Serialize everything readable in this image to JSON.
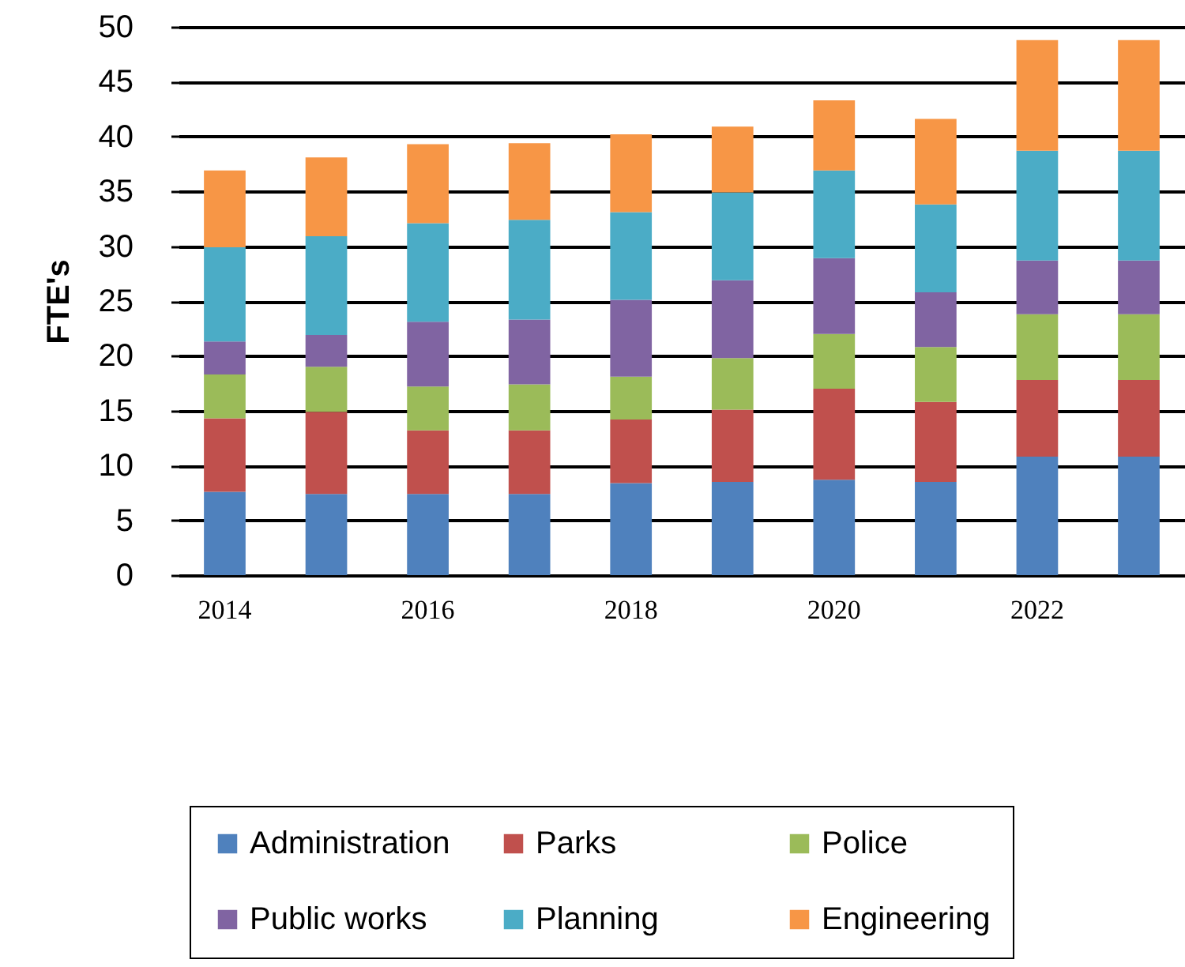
{
  "chart_data": {
    "type": "bar",
    "stacked": true,
    "ylabel": "FTE's",
    "categories": [
      "2014",
      null,
      "2016",
      null,
      "2018",
      null,
      "2020",
      null,
      "2022",
      null
    ],
    "series": [
      {
        "name": "Administration",
        "color": "#4f81bd",
        "values": [
          7.6,
          7.4,
          7.4,
          7.4,
          8.4,
          8.5,
          8.7,
          8.5,
          10.8,
          10.8
        ]
      },
      {
        "name": "Parks",
        "color": "#c0504d",
        "values": [
          6.7,
          7.5,
          5.8,
          5.8,
          5.8,
          6.6,
          8.3,
          7.3,
          7.0,
          7.0
        ]
      },
      {
        "name": "Police",
        "color": "#9bbb59",
        "values": [
          4.0,
          4.1,
          4.0,
          4.2,
          3.9,
          4.7,
          5.0,
          5.0,
          6.0,
          6.0
        ]
      },
      {
        "name": "Public works",
        "color": "#8064a2",
        "values": [
          3.0,
          2.9,
          5.9,
          5.9,
          7.0,
          7.1,
          6.9,
          5.0,
          4.9,
          4.9
        ]
      },
      {
        "name": "Planning",
        "color": "#4bacc6",
        "values": [
          8.6,
          9.0,
          9.0,
          9.1,
          8.0,
          8.0,
          8.0,
          8.0,
          10.0,
          10.0
        ]
      },
      {
        "name": "Engineering",
        "color": "#f79646",
        "values": [
          7.0,
          7.2,
          7.2,
          7.0,
          7.1,
          6.0,
          6.4,
          7.8,
          10.1,
          10.1
        ]
      }
    ],
    "ylim": [
      0,
      50
    ],
    "yticks": [
      0,
      5,
      10,
      15,
      20,
      25,
      30,
      35,
      40,
      45,
      50
    ],
    "grid": "y",
    "legend": "bottom"
  }
}
